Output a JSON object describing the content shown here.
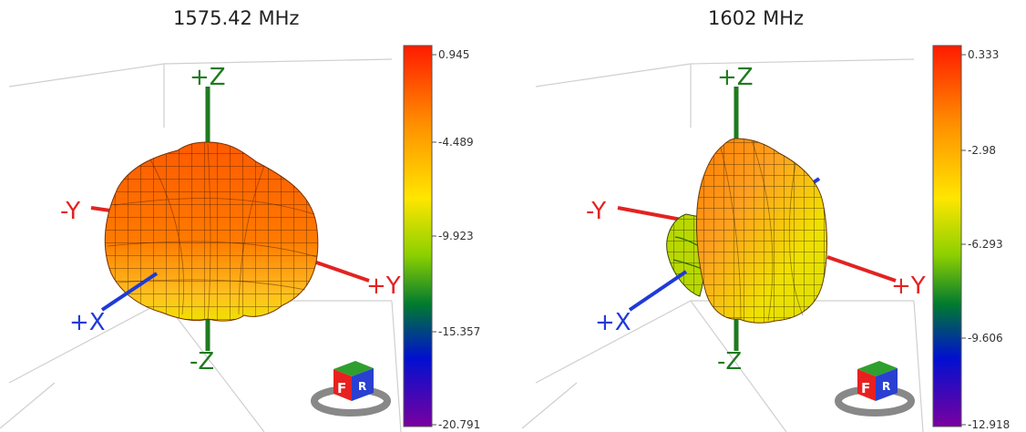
{
  "panels": [
    {
      "title": "1575.42 MHz",
      "colorbar": {
        "labels": [
          "0.945",
          "-4.489",
          "-9.923",
          "-15.357",
          "-20.791"
        ]
      }
    },
    {
      "title": "1602 MHz",
      "colorbar": {
        "labels": [
          "0.333",
          "-2.98",
          "-6.293",
          "-9.606",
          "-12.918"
        ]
      }
    }
  ],
  "axes": {
    "plus_z": "+Z",
    "minus_z": "-Z",
    "plus_y": "+Y",
    "minus_y": "-Y",
    "plus_x": "+X"
  },
  "view_cube": {
    "front": "F",
    "right": "R"
  },
  "colors": {
    "axis_z": "#1f7a1f",
    "axis_y": "#e32222",
    "axis_x": "#1f3ad8",
    "colorbar_stops": [
      "#ff0000",
      "#ff8c00",
      "#ffff00",
      "#00a000",
      "#0000ff",
      "#7a00a0"
    ]
  }
}
